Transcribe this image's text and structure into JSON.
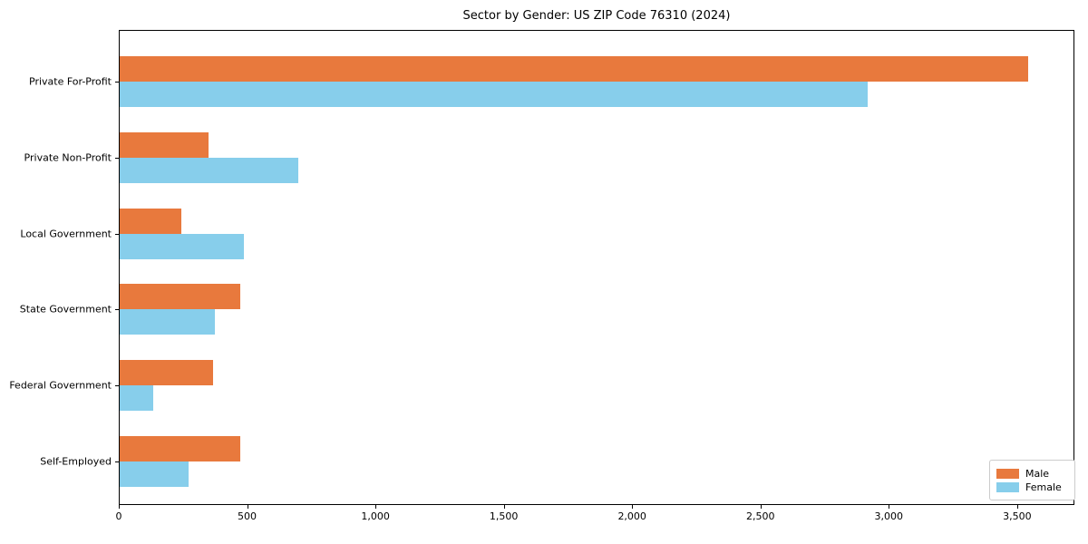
{
  "title": "Sector by Gender: US ZIP Code 76310 (2024)",
  "chart_data": {
    "type": "bar",
    "orientation": "horizontal",
    "title": "Sector by Gender: US ZIP Code 76310 (2024)",
    "categories": [
      "Private For-Profit",
      "Private Non-Profit",
      "Local Government",
      "State Government",
      "Federal Government",
      "Self-Employed"
    ],
    "series": [
      {
        "name": "Male",
        "color": "#e8793d",
        "values": [
          3540,
          345,
          240,
          470,
          365,
          470
        ]
      },
      {
        "name": "Female",
        "color": "#87ceeb",
        "values": [
          2915,
          695,
          485,
          370,
          130,
          270
        ]
      }
    ],
    "xlabel": "",
    "ylabel": "",
    "xlim": [
      0,
      3716
    ],
    "xticks": [
      0,
      500,
      1000,
      1500,
      2000,
      2500,
      3000,
      3500
    ],
    "xtick_labels": [
      "0",
      "500",
      "1,000",
      "1,500",
      "2,000",
      "2,500",
      "3,000",
      "3,500"
    ],
    "grid": false,
    "legend_position": "lower right",
    "background": "#ffffff",
    "text_color": "#000000"
  }
}
